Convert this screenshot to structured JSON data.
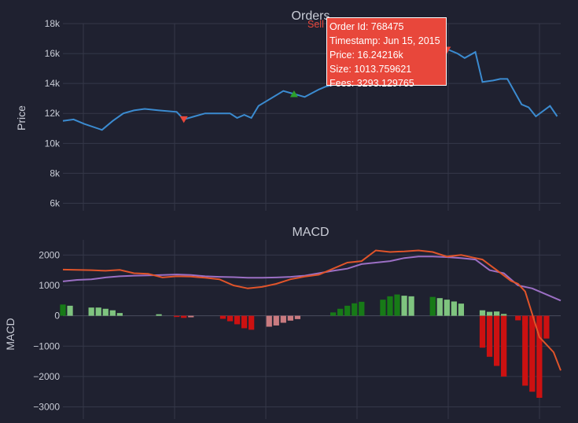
{
  "colors": {
    "background": "#1f2130",
    "grid": "#353849",
    "text": "#c9ccd6",
    "price_line": "#3b8bd0",
    "sell_marker": "#e8473b",
    "buy_marker": "#2ca02c",
    "macd_line": "#e0542a",
    "signal_line": "#9b6fc4",
    "hist_pos_up": "#177a17",
    "hist_pos_down": "#7fc47f",
    "hist_neg_up": "#c97b80",
    "hist_neg_down": "#cc1111"
  },
  "chart_data": [
    {
      "type": "line",
      "title": "Orders",
      "ylabel": "Price",
      "ylim": [
        5500,
        18000
      ],
      "yticks": [
        6000,
        8000,
        10000,
        12000,
        14000,
        16000,
        18000
      ],
      "ytick_labels": [
        "6k",
        "8k",
        "10k",
        "12k",
        "14k",
        "16k",
        "18k"
      ],
      "x": [
        0,
        3,
        6,
        11,
        14,
        17,
        20,
        23,
        27,
        32,
        34,
        37,
        40,
        47,
        49,
        51,
        53,
        55,
        62,
        65,
        68,
        72,
        74,
        76,
        80,
        84,
        87,
        89,
        93,
        95,
        97,
        100,
        104,
        108,
        111,
        113,
        116,
        118,
        121,
        123,
        125,
        129,
        131,
        133,
        137,
        139
      ],
      "series": [
        {
          "values": [
            11500,
            11600,
            11300,
            10900,
            11500,
            12000,
            12200,
            12300,
            12200,
            12100,
            11600,
            11800,
            12000,
            12000,
            11700,
            11900,
            11700,
            12500,
            13500,
            13300,
            13100,
            13600,
            13800,
            13900,
            15200,
            15100,
            15200,
            15700,
            16000,
            16100,
            16200,
            16100,
            16500,
            16300,
            16000,
            15700,
            16100,
            14100,
            14200,
            14300,
            14300,
            12600,
            12400,
            11800,
            12500,
            11800
          ]
        }
      ],
      "markers": [
        {
          "name": "Sell",
          "x": 34,
          "y": 11600,
          "symbol": "triangle-down"
        },
        {
          "name": "Buy",
          "x": 65,
          "y": 13300,
          "symbol": "triangle-up"
        },
        {
          "name": "Sell",
          "x": 108,
          "y": 16242.16,
          "symbol": "triangle-down"
        }
      ],
      "hover": {
        "label": "Sell",
        "lines": [
          "Order Id: 768475",
          "Timestamp: Jun 15, 2015",
          "Price: 16.24216k",
          "Size: 1013.759621",
          "Fees: 3293.129765"
        ]
      },
      "grid": true
    },
    {
      "type": "bar",
      "title": "MACD",
      "ylabel": "MACD",
      "ylim": [
        -3400,
        2500
      ],
      "yticks": [
        -3000,
        -2000,
        -1000,
        0,
        1000,
        2000
      ],
      "ytick_labels": [
        "−3000",
        "−2000",
        "−1000",
        "0",
        "1000",
        "2000"
      ],
      "histogram": {
        "x": [
          0,
          2,
          8,
          10,
          12,
          14,
          16,
          18,
          21,
          23,
          25,
          27,
          29,
          32,
          34,
          36,
          38,
          45,
          47,
          49,
          51,
          53,
          55,
          58,
          60,
          62,
          64,
          66,
          68,
          70,
          72,
          74,
          76,
          78,
          80,
          82,
          84,
          86,
          88,
          90,
          92,
          94,
          96,
          98,
          100,
          101,
          102,
          103,
          104,
          106,
          108,
          110,
          112,
          114,
          116,
          118,
          120,
          122,
          124,
          126,
          128,
          130,
          132,
          134,
          136,
          138,
          140
        ],
        "values": [
          370,
          330,
          270,
          270,
          230,
          180,
          90,
          0,
          0,
          0,
          0,
          50,
          0,
          -40,
          -70,
          -50,
          0,
          -100,
          -180,
          -280,
          -410,
          -460,
          0,
          -360,
          -320,
          -230,
          -160,
          -110,
          0,
          0,
          0,
          0,
          110,
          230,
          330,
          410,
          460,
          0,
          0,
          530,
          640,
          700,
          660,
          640,
          0,
          0,
          0,
          0,
          620,
          580,
          530,
          470,
          400,
          0,
          0,
          180,
          130,
          140,
          60,
          0,
          -150,
          -310,
          -420,
          -500,
          -750,
          0,
          0
        ],
        "colors": [
          "pos_up",
          "pos_down",
          "pos_down",
          "pos_down",
          "pos_down",
          "pos_down",
          "pos_down",
          "pos_down",
          "pos_down",
          "pos_down",
          "pos_down",
          "pos_down",
          "pos_down",
          "neg_down",
          "neg_down",
          "neg_up",
          "neg_up",
          "neg_down",
          "neg_down",
          "neg_down",
          "neg_down",
          "neg_down",
          "neg_down",
          "neg_up",
          "neg_up",
          "neg_up",
          "neg_up",
          "neg_up",
          "pos_up",
          "pos_up",
          "pos_up",
          "pos_up",
          "pos_up",
          "pos_up",
          "pos_up",
          "pos_up",
          "pos_up",
          "pos_up",
          "pos_up",
          "pos_up",
          "pos_up",
          "pos_up",
          "pos_down",
          "pos_down",
          "pos_down",
          "pos_down",
          "pos_down",
          "pos_down",
          "pos_up",
          "pos_down",
          "pos_down",
          "pos_down",
          "pos_down",
          "pos_down",
          "pos_down",
          "pos_down",
          "pos_down",
          "pos_down",
          "pos_down",
          "pos_down",
          "neg_down",
          "neg_down",
          "neg_down",
          "neg_down",
          "neg_down",
          "neg_down",
          "neg_down"
        ]
      },
      "neg_extension": {
        "x": [
          118,
          120,
          122,
          124,
          126,
          128,
          130,
          132,
          134,
          136,
          138,
          140
        ],
        "values": [
          -1050,
          -1350,
          -1650,
          -2000,
          0,
          0,
          -2300,
          -2500,
          -2700,
          0,
          0,
          0
        ]
      },
      "macd_line": {
        "x": [
          0,
          8,
          12,
          16,
          20,
          24,
          28,
          32,
          36,
          40,
          44,
          48,
          52,
          56,
          60,
          64,
          68,
          72,
          76,
          80,
          84,
          88,
          92,
          96,
          100,
          104,
          108,
          112,
          116,
          118,
          122,
          126,
          128,
          130,
          134,
          138,
          140
        ],
        "values": [
          1520,
          1500,
          1480,
          1510,
          1400,
          1380,
          1260,
          1300,
          1290,
          1250,
          1200,
          1000,
          900,
          950,
          1050,
          1200,
          1290,
          1350,
          1550,
          1750,
          1800,
          2150,
          2100,
          2120,
          2150,
          2100,
          1950,
          2000,
          1900,
          1850,
          1500,
          1150,
          1050,
          800,
          -700,
          -1200,
          -1800
        ]
      },
      "signal_line": {
        "x": [
          0,
          4,
          8,
          12,
          16,
          20,
          24,
          28,
          32,
          36,
          40,
          44,
          48,
          52,
          56,
          60,
          64,
          68,
          72,
          76,
          80,
          84,
          88,
          92,
          96,
          100,
          104,
          108,
          112,
          116,
          120,
          124,
          128,
          132,
          136,
          140
        ],
        "values": [
          1130,
          1180,
          1200,
          1260,
          1300,
          1320,
          1330,
          1340,
          1360,
          1340,
          1300,
          1280,
          1270,
          1250,
          1250,
          1260,
          1280,
          1320,
          1400,
          1480,
          1550,
          1700,
          1750,
          1800,
          1900,
          1950,
          1950,
          1930,
          1900,
          1850,
          1500,
          1400,
          1000,
          900,
          700,
          500
        ]
      },
      "grid": true
    }
  ]
}
